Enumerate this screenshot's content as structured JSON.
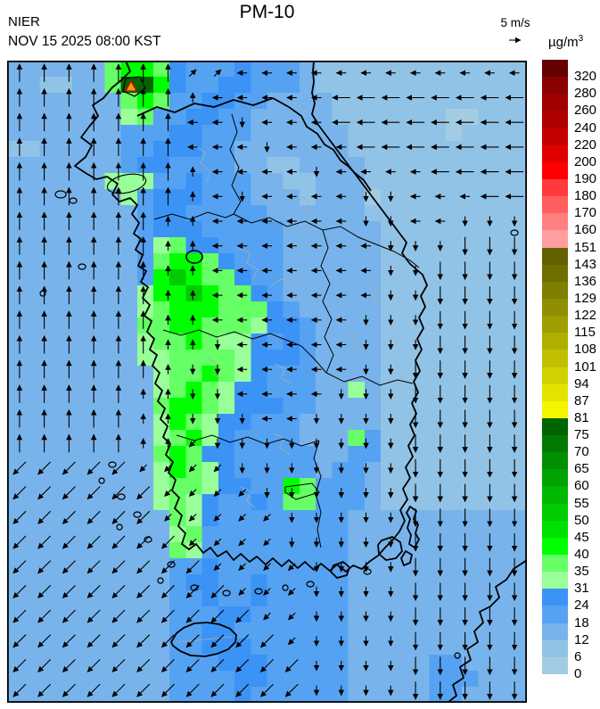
{
  "header": {
    "agency": "NIER",
    "datetime": "NOV 15 2025 08:00 KST",
    "title": "PM-10",
    "wind_ref_label": "5 m/s",
    "unit_base": "µg/m",
    "unit_exp": "3"
  },
  "colorbar": {
    "tick_labels": [
      "320",
      "280",
      "260",
      "240",
      "220",
      "200",
      "190",
      "180",
      "170",
      "160",
      "151",
      "143",
      "136",
      "129",
      "122",
      "115",
      "108",
      "101",
      "94",
      "87",
      "81",
      "75",
      "70",
      "65",
      "60",
      "55",
      "50",
      "45",
      "40",
      "35",
      "31",
      "24",
      "18",
      "12",
      "6",
      "0"
    ],
    "segment_colors": [
      "#640000",
      "#8B0000",
      "#9E0000",
      "#B00000",
      "#C40000",
      "#E00000",
      "#FF0000",
      "#FF3A3A",
      "#FF5E5E",
      "#FF8080",
      "#FF9E9E",
      "#616100",
      "#6F6F00",
      "#7E7E00",
      "#8E8E00",
      "#9E9E00",
      "#AFAF00",
      "#C0C000",
      "#D2D200",
      "#E3E300",
      "#F5F500",
      "#006400",
      "#007A00",
      "#008F00",
      "#00A300",
      "#00B800",
      "#00CC00",
      "#00E000",
      "#00FF00",
      "#66FF66",
      "#99FF99",
      "#3C93F6",
      "#55A2F2",
      "#78B4EB",
      "#91C3E6",
      "#A3CCE2"
    ]
  },
  "map": {
    "palette": {
      "a": "#A3CCE2",
      "b": "#91C3E6",
      "c": "#78B4EB",
      "d": "#55A2F2",
      "e": "#3C93F6",
      "f": "#99FF99",
      "g": "#66FF66",
      "h": "#00FF00",
      "i": "#00E000",
      "j": "#00CC00",
      "k": "#00B800",
      "l": "#00A300",
      "m": "#006400",
      "y": "#F5F500"
    },
    "raster_rows": [
      "ccccccghhgedddedddcbbbbbbbbbbbbb",
      "ccbbccgmmheddeedddcbbbbbbbbbbbbb",
      "cccccccghgddeeddccccbbbbbbbbbbbb",
      "cccccccfgddeeddcccccbbbbbbbaabbb",
      "cccccccdddeedddccccccbbbbbbabbbb",
      "bbcccccddeeeddcccccccbbbbbbbbbbb",
      "cccccccdeeddddccbbccccbbbbbbbbbb",
      "ccccccfffddedddccbbcccbbbbbbbbbb",
      "cccccccfdeeedddcccbcccabbbbbbbbb",
      "ccccccccdeedddddccccccbbbbbbbbbb",
      "ccccccccdeeedddddccccccbbbbbbbbb",
      "ccccccccdfgeeddddccccccbbbbbbbbb",
      "ccccccccdghhgedddccccccbbbbbbbbb",
      "ccccccccdhjhggeddccccccbbbbbbbbb",
      "ccccccccfhhjhggedccccccbbbbbbbbb",
      "ccccccccfghhhgggedcccccbbbbbbbbb",
      "ccccccccgghhgggfeedccccbbbbbbbbb",
      "ccccccccfgghgffededccccbbbbbbbbb",
      "ccccccccffggggfeeedccccbbbbbbbbb",
      "cccccccccfgghgfedddccccbbbbbbbbb",
      "cccccccccfghgfeedddccfcbbbbbbbbb",
      "cccccccccghhgfeeeddccccbbbbbbbbb",
      "cccccccccfhgfeedddcccccbbbbbbbbb",
      "cccccccccfghfeddddcccgdbbbbbbbbb",
      "cccccccccghgeedddddccddbbbbbbbbb",
      "cccccccccfhgfedddddcddcbbbbbbbbb",
      "cccccccccfggfeeddhgdddcbbbbbbbbb",
      "cccccccccfgfeddedggdddcbbbbbbbbb",
      "ccccccccccgfeddddddddccccccccccc",
      "ccccccccccfgdddddddddccccccccccc",
      "ccccccccccgfdddddddddccccccccccc",
      "ccccccccccddeddddddddccccccccccc",
      "ccccccccccdeeddedddddccccccccccc",
      "ccccccccccddeddedddddccccccccccc",
      "ccccccccccdddeeddddddccccccccccc",
      "ccccccccccddeedddddddccccccccccc",
      "ccccccccccddeeeddddddccccccccccc",
      "ccccccccccdddeeedddddcccccddcccc",
      "ccccccccccddddeedddddcccccdddccc",
      "ccccccccccddddeddddddcccccddcccc"
    ],
    "arrow_rows": [
      "NNNNNNNaawwwwwwwwwwww",
      "NNNNNNNnwwwwwWWWWWWWW",
      "NNNNNNNwwswwwWWWWWWWW",
      "NNNNNNNwwwswwwWWWWWWW",
      "NNNNNNNnwwwwswwwwWWWW",
      "NNNNNNNnwswwwwsswwwWW",
      "NNNNNNnnwwwwwwsswwsss",
      "NNNNNNnnwwwwwwwsssSSS",
      "NNNNNNnnwwwwwwwssSSSS",
      "NNNNNNnnwwwwwwwssSSSS",
      "NNNNNNnnwwwwwwsssSSSS",
      "NNNNNNnnswwwwwsssSSSS",
      "NNNNNNnsswwwwwssSSSSS",
      "NNNNNnnsswwwwsssSSSSS",
      "NNNNNnnssswwssssSSSSS",
      "NNNNNnncssssssssSSSSS",
      "CCCCCccccsssssssSSSSS",
      "CCCCCCccccssssssSSSSS",
      "CCCCCCcccccsssssSSSSS",
      "CCCCCCCccccsssssSSSSS",
      "CCCCCCCCccccssssSSSSS",
      "CCCCCCCCCcccssssSSSSS",
      "CCCCCCCCCCccssssSSSSS",
      "CCCCCCCCCCCcssssSSSSS",
      "CCCCCCCCCCCCssssSSSSS",
      "CCCCCCCCCCCCssssSSSSS"
    ],
    "arrow_dirs": {
      "N": [
        0,
        -1
      ],
      "n": [
        0,
        -1
      ],
      "S": [
        0,
        1
      ],
      "s": [
        0,
        1
      ],
      "W": [
        -1,
        0
      ],
      "w": [
        -1,
        0
      ],
      "E": [
        1,
        0
      ],
      "A": [
        0.707,
        -0.707
      ],
      "a": [
        0.707,
        -0.707
      ],
      "B": [
        0.707,
        0.707
      ],
      "b2": [
        0.707,
        0.707
      ],
      "C": [
        -0.707,
        0.707
      ],
      "c": [
        -0.707,
        0.707
      ],
      "D": [
        -0.707,
        -0.707
      ],
      "d2": [
        -0.707,
        -0.707
      ]
    },
    "arrow_len_long": 20,
    "arrow_len_short": 11,
    "marker": {
      "fill": "#F0A000",
      "stroke": "#E00000"
    }
  }
}
